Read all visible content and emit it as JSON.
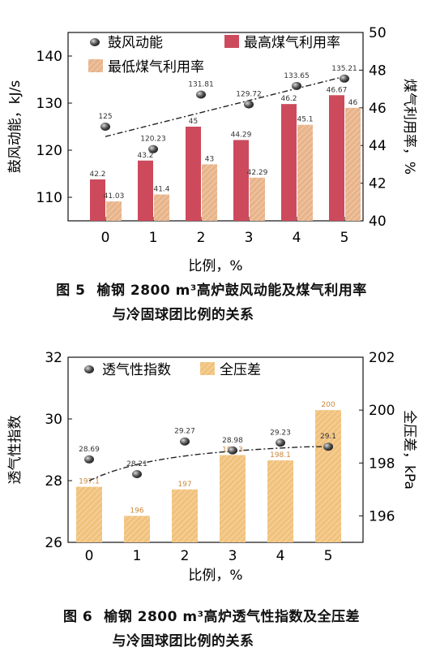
{
  "figures": [
    {
      "caption": {
        "number": "图 5",
        "line1": "榆钢 2800 m³高炉鼓风动能及煤气利用率",
        "line2": "与冷固球团比例的关系"
      }
    },
    {
      "caption": {
        "number": "图 6",
        "line1": "榆钢 2800 m³高炉透气性指数及全压差",
        "line2": "与冷固球团比例的关系"
      }
    }
  ],
  "chart_data": [
    {
      "type": "bar",
      "categories": [
        "0",
        "1",
        "2",
        "3",
        "4",
        "5"
      ],
      "xlabel": "比例，%",
      "ylabel": "鼓风动能，kJ/s",
      "y2label": "煤气利用率，%",
      "ylim": [
        105,
        145
      ],
      "y2lim": [
        40,
        50
      ],
      "yticks": [
        110,
        120,
        130,
        140
      ],
      "y2ticks": [
        40,
        42,
        44,
        46,
        48,
        50
      ],
      "legend_position": "top",
      "trendline": "dash-dot",
      "series": [
        {
          "name": "鼓风动能",
          "kind": "scatter",
          "axis": "left",
          "color": "#555555",
          "values": [
            125,
            120.23,
            131.81,
            129.72,
            133.65,
            135.21
          ],
          "labels": [
            "125",
            "120.23",
            "131.81",
            "129.72",
            "133.65",
            "135.21"
          ]
        },
        {
          "name": "最高煤气利用率",
          "kind": "bar",
          "axis": "right",
          "color": "#cc4a5c",
          "values": [
            42.2,
            43.2,
            45,
            44.29,
            46.2,
            46.67
          ],
          "labels": [
            "42.2",
            "43.2",
            "45",
            "44.29",
            "46.2",
            "46.67"
          ]
        },
        {
          "name": "最低煤气利用率",
          "kind": "bar",
          "axis": "right",
          "color": "#e8b48a",
          "values": [
            41.03,
            41.4,
            43,
            42.29,
            45.1,
            46
          ],
          "labels": [
            "41.03",
            "41.4",
            "43",
            "42.29",
            "45.1",
            "46"
          ]
        }
      ]
    },
    {
      "type": "bar",
      "categories": [
        "0",
        "1",
        "2",
        "3",
        "4",
        "5"
      ],
      "xlabel": "比例，%",
      "ylabel": "透气性指数",
      "y2label": "全压差，kPa",
      "ylim": [
        26,
        32
      ],
      "y2lim": [
        195,
        202
      ],
      "yticks": [
        26,
        28,
        30,
        32
      ],
      "y2ticks": [
        196,
        198,
        200,
        202
      ],
      "legend_position": "top",
      "trendline": "dash-dot",
      "series": [
        {
          "name": "透气性指数",
          "kind": "scatter",
          "axis": "left",
          "color": "#555555",
          "values": [
            28.69,
            28.21,
            29.27,
            28.98,
            29.23,
            29.1
          ],
          "labels": [
            "28.69",
            "28.21",
            "29.27",
            "28.98",
            "29.23",
            "29.1"
          ]
        },
        {
          "name": "全压差",
          "kind": "bar",
          "axis": "right",
          "color": "#f1c27d",
          "values": [
            197.1,
            196,
            197,
            198.3,
            198.1,
            200
          ],
          "labels": [
            "197.1",
            "196",
            "197",
            "198.3",
            "198.1",
            "200"
          ]
        }
      ]
    }
  ]
}
